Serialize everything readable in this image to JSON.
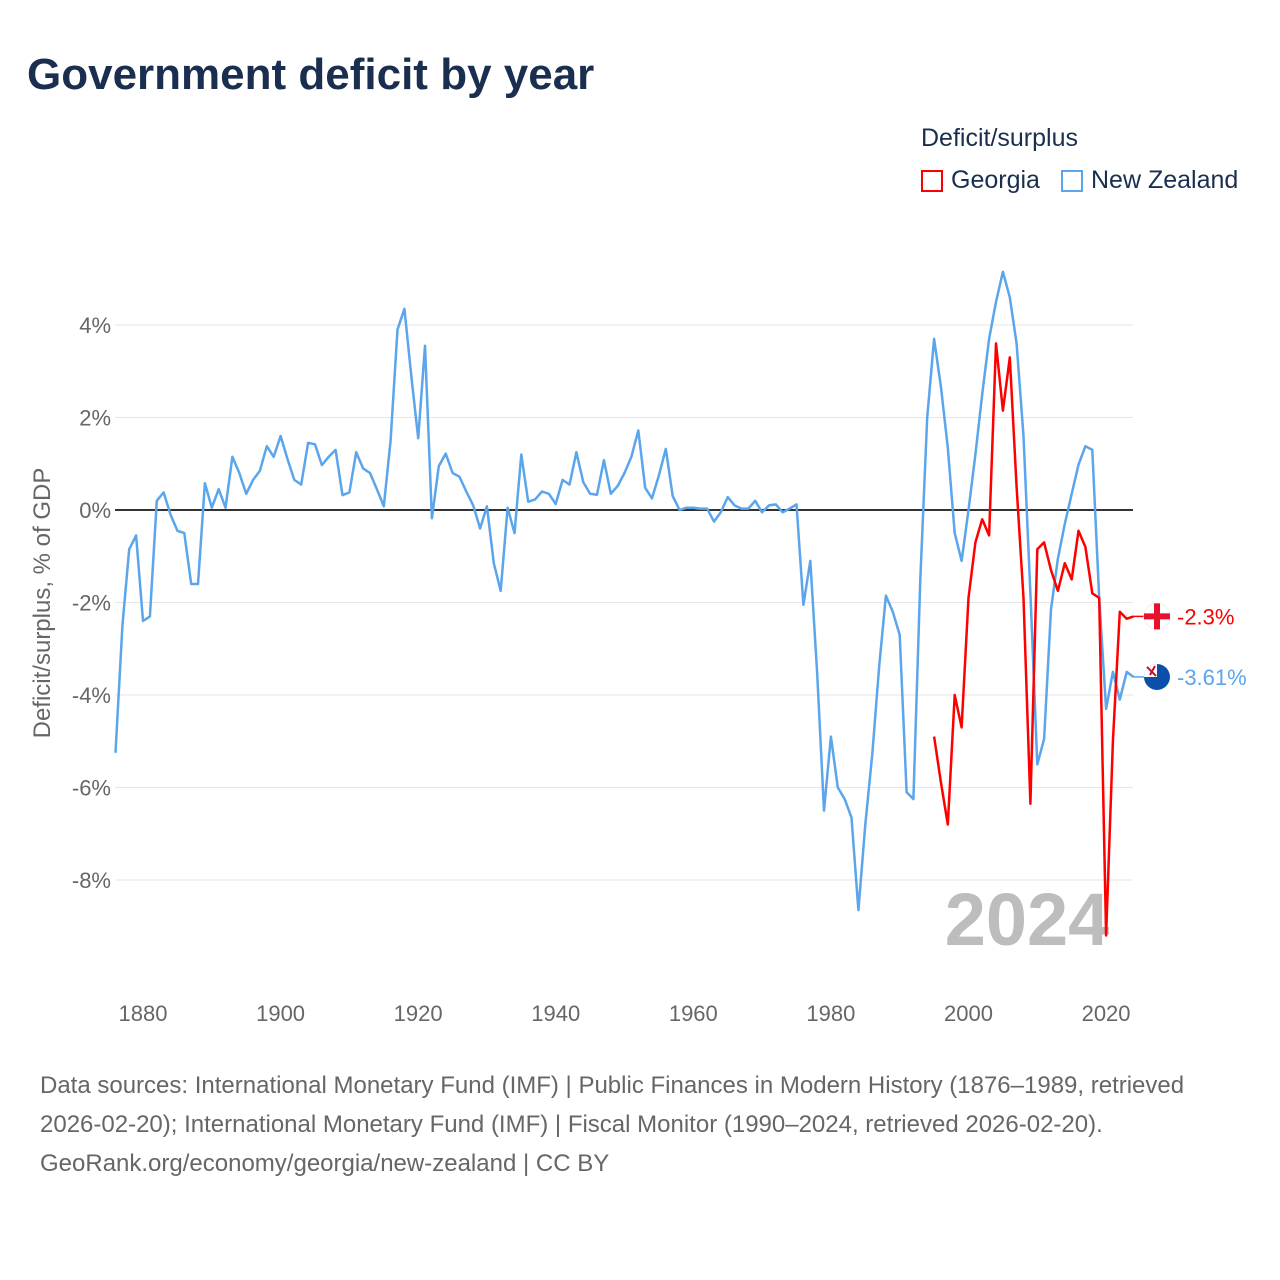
{
  "title": "Government deficit by year",
  "legend": {
    "title": "Deficit/surplus",
    "items": [
      {
        "name": "Georgia",
        "color": "#ff0000"
      },
      {
        "name": "New Zealand",
        "color": "#5aa5ec"
      }
    ]
  },
  "footer": {
    "sources": "Data sources: International Monetary Fund (IMF) | Public Finances in Modern History (1876–1989, retrieved 2026-02-20); International Monetary Fund (IMF) | Fiscal Monitor (1990–2024, retrieved 2026-02-20).",
    "credit": "GeoRank.org/economy/georgia/new-zealand | CC BY"
  },
  "chart_data": {
    "type": "line",
    "title": "Government deficit by year",
    "xlabel": "",
    "ylabel": "Deficit/surplus, % of GDP",
    "xlim": [
      1876,
      2024
    ],
    "ylim": [
      -10,
      5.5
    ],
    "xticks": [
      1880,
      1900,
      1920,
      1940,
      1960,
      1980,
      2000,
      2020
    ],
    "xtick_labels": [
      "1880",
      "1900",
      "1920",
      "1940",
      "1960",
      "1980",
      "2000",
      "2020"
    ],
    "yticks": [
      -8,
      -6,
      -4,
      -2,
      0,
      2,
      4
    ],
    "ytick_labels": [
      "-8%",
      "-6%",
      "-4%",
      "-2%",
      "0%",
      "2%",
      "4%"
    ],
    "year_watermark": "2024",
    "series": [
      {
        "name": "New Zealand",
        "color": "#5aa5ec",
        "start_year": 1876,
        "end_label": "-3.61%",
        "values": [
          -5.25,
          -2.5,
          -0.85,
          -0.55,
          -2.4,
          -2.3,
          0.2,
          0.38,
          -0.1,
          -0.45,
          -0.5,
          -1.6,
          -1.6,
          0.58,
          0.05,
          0.45,
          0.05,
          1.15,
          0.8,
          0.35,
          0.65,
          0.85,
          1.38,
          1.15,
          1.6,
          1.1,
          0.65,
          0.55,
          1.45,
          1.42,
          0.97,
          1.15,
          1.3,
          0.32,
          0.38,
          1.25,
          0.9,
          0.8,
          0.45,
          0.08,
          1.5,
          3.9,
          4.35,
          2.9,
          1.55,
          3.55,
          -0.18,
          0.95,
          1.22,
          0.8,
          0.72,
          0.4,
          0.1,
          -0.4,
          0.08,
          -1.15,
          -1.75,
          0.05,
          -0.5,
          1.2,
          0.18,
          0.23,
          0.4,
          0.35,
          0.13,
          0.65,
          0.55,
          1.25,
          0.6,
          0.35,
          0.33,
          1.08,
          0.35,
          0.52,
          0.8,
          1.15,
          1.72,
          0.48,
          0.25,
          0.75,
          1.32,
          0.3,
          0.0,
          0.05,
          0.05,
          0.03,
          0.03,
          -0.25,
          -0.05,
          0.28,
          0.1,
          0.03,
          0.03,
          0.2,
          -0.05,
          0.1,
          0.12,
          -0.05,
          0.03,
          0.12,
          -2.05,
          -1.1,
          -3.5,
          -6.5,
          -4.9,
          -6.0,
          -6.25,
          -6.65,
          -8.65,
          -6.8,
          -5.3,
          -3.4,
          -1.85,
          -2.2,
          -2.7,
          -6.1,
          -6.25,
          -1.5,
          2.0,
          3.7,
          2.65,
          1.35,
          -0.5,
          -1.1,
          0.0,
          1.2,
          2.5,
          3.7,
          4.5,
          5.15,
          4.6,
          3.6,
          1.6,
          -1.8,
          -5.5,
          -4.95,
          -2.15,
          -1.05,
          -0.3,
          0.35,
          0.98,
          1.38,
          1.3,
          -1.9,
          -4.3,
          -3.5,
          -4.1,
          -3.5,
          -3.61
        ]
      },
      {
        "name": "Georgia",
        "color": "#ff0000",
        "start_year": 1995,
        "end_label": "-2.3%",
        "values": [
          -4.9,
          -5.9,
          -6.8,
          -4.0,
          -4.7,
          -1.9,
          -0.7,
          -0.2,
          -0.55,
          3.6,
          2.15,
          3.3,
          0.5,
          -1.9,
          -6.35,
          -0.85,
          -0.7,
          -1.3,
          -1.75,
          -1.15,
          -1.5,
          -0.45,
          -0.8,
          -1.8,
          -1.9,
          -9.2,
          -5.0,
          -2.2,
          -2.35,
          -2.3
        ]
      }
    ]
  }
}
